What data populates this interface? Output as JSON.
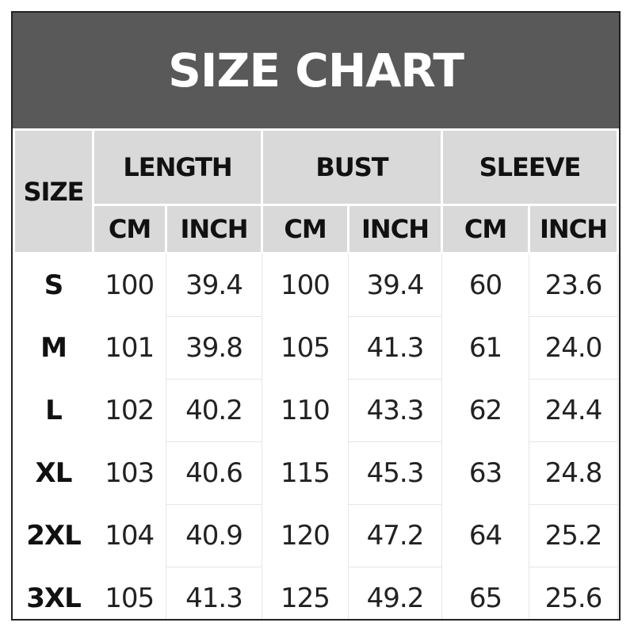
{
  "title": "SIZE CHART",
  "headers": {
    "size": "SIZE",
    "groups": [
      "LENGTH",
      "BUST",
      "SLEEVE"
    ],
    "units": [
      "CM",
      "INCH"
    ]
  },
  "rows": [
    {
      "size": "S",
      "values": [
        "100",
        "39.4",
        "100",
        "39.4",
        "60",
        "23.6"
      ]
    },
    {
      "size": "M",
      "values": [
        "101",
        "39.8",
        "105",
        "41.3",
        "61",
        "24.0"
      ]
    },
    {
      "size": "L",
      "values": [
        "102",
        "40.2",
        "110",
        "43.3",
        "62",
        "24.4"
      ]
    },
    {
      "size": "XL",
      "values": [
        "103",
        "40.6",
        "115",
        "45.3",
        "63",
        "24.8"
      ]
    },
    {
      "size": "2XL",
      "values": [
        "104",
        "40.9",
        "120",
        "47.2",
        "64",
        "25.2"
      ]
    },
    {
      "size": "3XL",
      "values": [
        "105",
        "41.3",
        "125",
        "49.2",
        "65",
        "25.6"
      ]
    }
  ],
  "colors": {
    "title_bg": "#595959",
    "header_bg": "#d9d9d9",
    "border": "#222222"
  }
}
